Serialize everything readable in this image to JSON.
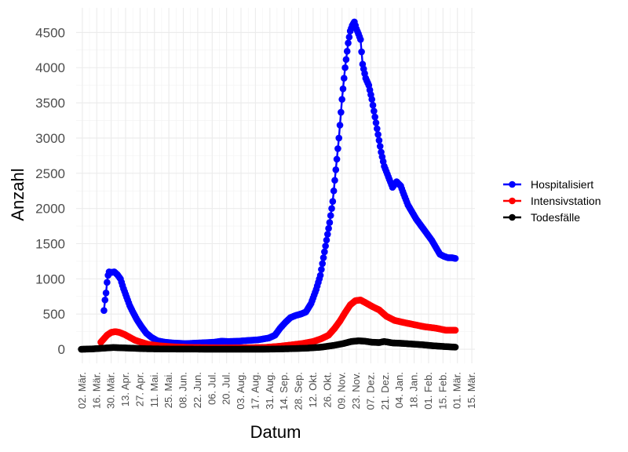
{
  "chart_data": {
    "type": "line",
    "title": "",
    "xlabel": "Datum",
    "ylabel": "Anzahl",
    "x_range": [
      "2020-02-25",
      "2021-03-18"
    ],
    "ylim": [
      -200,
      4850
    ],
    "y_ticks": [
      0,
      500,
      1000,
      1500,
      2000,
      2500,
      3000,
      3500,
      4000,
      4500
    ],
    "x_ticks": [
      {
        "date": "2020-03-02",
        "label": "02. Mär."
      },
      {
        "date": "2020-03-16",
        "label": "16. Mär."
      },
      {
        "date": "2020-03-30",
        "label": "30. Mär."
      },
      {
        "date": "2020-04-13",
        "label": "13. Apr."
      },
      {
        "date": "2020-04-27",
        "label": "27. Apr."
      },
      {
        "date": "2020-05-11",
        "label": "11. Mai."
      },
      {
        "date": "2020-05-25",
        "label": "25. Mai."
      },
      {
        "date": "2020-06-08",
        "label": "08. Jun."
      },
      {
        "date": "2020-06-22",
        "label": "22. Jun."
      },
      {
        "date": "2020-07-06",
        "label": "06. Jul."
      },
      {
        "date": "2020-07-20",
        "label": "20. Jul."
      },
      {
        "date": "2020-08-03",
        "label": "03. Aug."
      },
      {
        "date": "2020-08-17",
        "label": "17. Aug."
      },
      {
        "date": "2020-08-31",
        "label": "31. Aug."
      },
      {
        "date": "2020-09-14",
        "label": "14. Sep."
      },
      {
        "date": "2020-09-28",
        "label": "28. Sep."
      },
      {
        "date": "2020-10-12",
        "label": "12. Okt."
      },
      {
        "date": "2020-10-26",
        "label": "26. Okt."
      },
      {
        "date": "2020-11-09",
        "label": "09. Nov."
      },
      {
        "date": "2020-11-23",
        "label": "23. Nov."
      },
      {
        "date": "2020-12-07",
        "label": "07. Dez."
      },
      {
        "date": "2020-12-21",
        "label": "21. Dez."
      },
      {
        "date": "2021-01-04",
        "label": "04. Jan."
      },
      {
        "date": "2021-01-18",
        "label": "18. Jan."
      },
      {
        "date": "2021-02-01",
        "label": "01. Feb."
      },
      {
        "date": "2021-02-15",
        "label": "15. Feb."
      },
      {
        "date": "2021-03-01",
        "label": "01. Mär."
      },
      {
        "date": "2021-03-15",
        "label": "15. Mär."
      }
    ],
    "grid": true,
    "legend_position": "right",
    "series": [
      {
        "name": "Hospitalisiert",
        "color": "#0000ff",
        "points": [
          [
            "2020-03-23",
            550
          ],
          [
            "2020-03-24",
            700
          ],
          [
            "2020-03-25",
            800
          ],
          [
            "2020-03-26",
            950
          ],
          [
            "2020-03-27",
            1050
          ],
          [
            "2020-03-28",
            1100
          ],
          [
            "2020-03-30",
            1090
          ],
          [
            "2020-04-02",
            1100
          ],
          [
            "2020-04-05",
            1060
          ],
          [
            "2020-04-08",
            1000
          ],
          [
            "2020-04-11",
            860
          ],
          [
            "2020-04-14",
            740
          ],
          [
            "2020-04-17",
            620
          ],
          [
            "2020-04-20",
            530
          ],
          [
            "2020-04-24",
            420
          ],
          [
            "2020-04-28",
            330
          ],
          [
            "2020-05-03",
            230
          ],
          [
            "2020-05-08",
            170
          ],
          [
            "2020-05-14",
            120
          ],
          [
            "2020-05-21",
            100
          ],
          [
            "2020-05-28",
            90
          ],
          [
            "2020-06-10",
            80
          ],
          [
            "2020-06-25",
            90
          ],
          [
            "2020-07-08",
            100
          ],
          [
            "2020-07-15",
            115
          ],
          [
            "2020-07-22",
            110
          ],
          [
            "2020-08-01",
            115
          ],
          [
            "2020-08-10",
            125
          ],
          [
            "2020-08-20",
            135
          ],
          [
            "2020-08-30",
            160
          ],
          [
            "2020-09-05",
            200
          ],
          [
            "2020-09-10",
            300
          ],
          [
            "2020-09-15",
            380
          ],
          [
            "2020-09-20",
            450
          ],
          [
            "2020-09-25",
            480
          ],
          [
            "2020-09-30",
            500
          ],
          [
            "2020-10-05",
            530
          ],
          [
            "2020-10-10",
            650
          ],
          [
            "2020-10-15",
            850
          ],
          [
            "2020-10-19",
            1050
          ],
          [
            "2020-10-22",
            1300
          ],
          [
            "2020-10-25",
            1550
          ],
          [
            "2020-10-28",
            1800
          ],
          [
            "2020-10-31",
            2100
          ],
          [
            "2020-11-03",
            2550
          ],
          [
            "2020-11-06",
            3000
          ],
          [
            "2020-11-09",
            3550
          ],
          [
            "2020-11-12",
            4000
          ],
          [
            "2020-11-15",
            4350
          ],
          [
            "2020-11-17",
            4520
          ],
          [
            "2020-11-19",
            4600
          ],
          [
            "2020-11-21",
            4650
          ],
          [
            "2020-11-23",
            4550
          ],
          [
            "2020-11-25",
            4480
          ],
          [
            "2020-11-27",
            4400
          ],
          [
            "2020-11-29",
            4050
          ],
          [
            "2020-12-02",
            3850
          ],
          [
            "2020-12-05",
            3750
          ],
          [
            "2020-12-08",
            3550
          ],
          [
            "2020-12-11",
            3300
          ],
          [
            "2020-12-14",
            3050
          ],
          [
            "2020-12-17",
            2800
          ],
          [
            "2020-12-20",
            2600
          ],
          [
            "2020-12-24",
            2450
          ],
          [
            "2020-12-28",
            2300
          ],
          [
            "2021-01-01",
            2380
          ],
          [
            "2021-01-05",
            2320
          ],
          [
            "2021-01-08",
            2200
          ],
          [
            "2021-01-12",
            2050
          ],
          [
            "2021-01-16",
            1950
          ],
          [
            "2021-01-20",
            1850
          ],
          [
            "2021-01-25",
            1750
          ],
          [
            "2021-01-30",
            1650
          ],
          [
            "2021-02-04",
            1550
          ],
          [
            "2021-02-08",
            1450
          ],
          [
            "2021-02-12",
            1350
          ],
          [
            "2021-02-16",
            1320
          ],
          [
            "2021-02-20",
            1300
          ],
          [
            "2021-02-24",
            1300
          ],
          [
            "2021-02-27",
            1290
          ]
        ]
      },
      {
        "name": "Intensivstation",
        "color": "#ff0000",
        "points": [
          [
            "2020-03-20",
            100
          ],
          [
            "2020-03-23",
            150
          ],
          [
            "2020-03-26",
            200
          ],
          [
            "2020-03-30",
            240
          ],
          [
            "2020-04-03",
            250
          ],
          [
            "2020-04-07",
            240
          ],
          [
            "2020-04-12",
            210
          ],
          [
            "2020-04-17",
            170
          ],
          [
            "2020-04-22",
            130
          ],
          [
            "2020-04-28",
            100
          ],
          [
            "2020-05-05",
            70
          ],
          [
            "2020-05-15",
            50
          ],
          [
            "2020-05-28",
            35
          ],
          [
            "2020-06-15",
            25
          ],
          [
            "2020-07-10",
            20
          ],
          [
            "2020-08-01",
            20
          ],
          [
            "2020-08-25",
            25
          ],
          [
            "2020-09-08",
            40
          ],
          [
            "2020-09-20",
            60
          ],
          [
            "2020-10-01",
            80
          ],
          [
            "2020-10-12",
            110
          ],
          [
            "2020-10-20",
            150
          ],
          [
            "2020-10-27",
            200
          ],
          [
            "2020-11-02",
            300
          ],
          [
            "2020-11-07",
            400
          ],
          [
            "2020-11-12",
            520
          ],
          [
            "2020-11-17",
            630
          ],
          [
            "2020-11-22",
            690
          ],
          [
            "2020-11-27",
            700
          ],
          [
            "2020-12-02",
            660
          ],
          [
            "2020-12-08",
            610
          ],
          [
            "2020-12-15",
            560
          ],
          [
            "2020-12-22",
            470
          ],
          [
            "2020-12-30",
            410
          ],
          [
            "2021-01-08",
            380
          ],
          [
            "2021-01-18",
            350
          ],
          [
            "2021-01-28",
            320
          ],
          [
            "2021-02-08",
            300
          ],
          [
            "2021-02-18",
            270
          ],
          [
            "2021-02-27",
            270
          ]
        ]
      },
      {
        "name": "Todesfälle",
        "color": "#000000",
        "points": [
          [
            "2020-03-01",
            0
          ],
          [
            "2020-03-12",
            5
          ],
          [
            "2020-03-22",
            15
          ],
          [
            "2020-04-01",
            25
          ],
          [
            "2020-04-10",
            20
          ],
          [
            "2020-04-20",
            15
          ],
          [
            "2020-05-01",
            8
          ],
          [
            "2020-05-20",
            4
          ],
          [
            "2020-06-20",
            2
          ],
          [
            "2020-08-01",
            1
          ],
          [
            "2020-09-01",
            2
          ],
          [
            "2020-09-20",
            8
          ],
          [
            "2020-10-05",
            15
          ],
          [
            "2020-10-20",
            30
          ],
          [
            "2020-11-01",
            55
          ],
          [
            "2020-11-10",
            80
          ],
          [
            "2020-11-18",
            110
          ],
          [
            "2020-11-25",
            120
          ],
          [
            "2020-12-01",
            115
          ],
          [
            "2020-12-08",
            100
          ],
          [
            "2020-12-15",
            95
          ],
          [
            "2020-12-20",
            110
          ],
          [
            "2020-12-28",
            90
          ],
          [
            "2021-01-05",
            85
          ],
          [
            "2021-01-15",
            75
          ],
          [
            "2021-01-25",
            65
          ],
          [
            "2021-02-05",
            50
          ],
          [
            "2021-02-15",
            40
          ],
          [
            "2021-02-27",
            30
          ]
        ]
      }
    ]
  }
}
